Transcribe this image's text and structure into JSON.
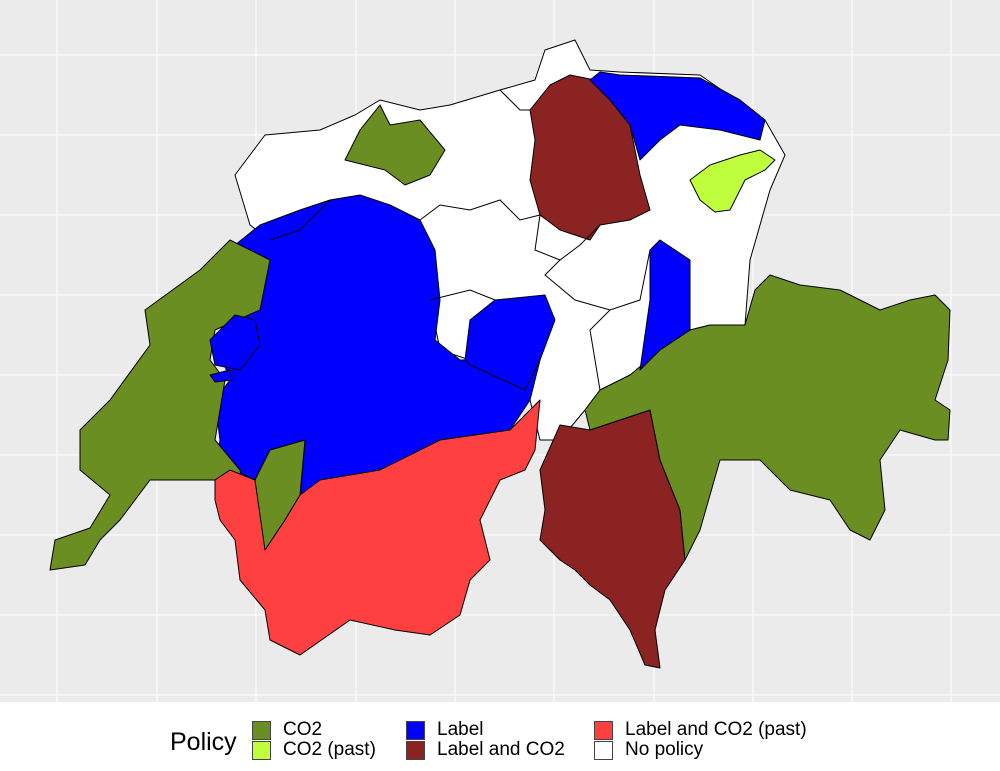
{
  "legend": {
    "title": "Policy",
    "items": [
      {
        "label": "CO2",
        "color": "#6B8E23"
      },
      {
        "label": "CO2 (past)",
        "color": "#C0FF3E"
      },
      {
        "label": "Label",
        "color": "#0000FF"
      },
      {
        "label": "Label and CO2",
        "color": "#8B2323"
      },
      {
        "label": "Label and CO2 (past)",
        "color": "#FF4040"
      },
      {
        "label": "No policy",
        "color": "#FFFFFF"
      }
    ]
  },
  "panel": {
    "background": "#EBEBEB",
    "grid_color": "#FFFFFF",
    "grid": true
  },
  "region_policies": [
    "No policy",
    "CO2",
    "Label",
    "CO2",
    "Label and CO2 (past)",
    "Label and CO2",
    "CO2",
    "Label",
    "Label",
    "Label and CO2",
    "Label",
    "CO2 (past)",
    "Label",
    "Label"
  ]
}
